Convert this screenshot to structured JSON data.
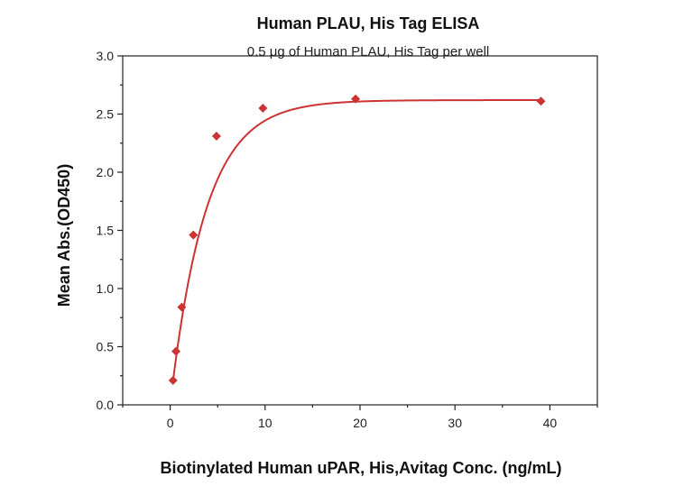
{
  "chart_data": {
    "type": "scatter",
    "title": "Human PLAU, His Tag ELISA",
    "subtitle": "0.5 μg of Human PLAU, His Tag per well",
    "xlabel": "Biotinylated Human uPAR, His,Avitag Conc. (ng/mL)",
    "ylabel": "Mean Abs.(OD450)",
    "xlim": [
      -5,
      45
    ],
    "ylim": [
      0,
      3.0
    ],
    "x_ticks": [
      0,
      10,
      20,
      30,
      40
    ],
    "y_ticks": [
      0.0,
      0.5,
      1.0,
      1.5,
      2.0,
      2.5,
      3.0
    ],
    "x_tick_labels": [
      "0",
      "10",
      "20",
      "30",
      "40"
    ],
    "y_tick_labels": [
      "0.0",
      "0.5",
      "1.0",
      "1.5",
      "2.0",
      "2.5",
      "3.0"
    ],
    "grid": false,
    "series": [
      {
        "marker": "diamond",
        "color": "#cc3333",
        "fit_curve": true,
        "points": [
          {
            "x": 0.3,
            "y": 0.21
          },
          {
            "x": 0.61,
            "y": 0.46
          },
          {
            "x": 1.22,
            "y": 0.84
          },
          {
            "x": 2.44,
            "y": 1.46
          },
          {
            "x": 4.88,
            "y": 2.31
          },
          {
            "x": 9.77,
            "y": 2.55
          },
          {
            "x": 19.53,
            "y": 2.63
          },
          {
            "x": 39.06,
            "y": 2.61
          }
        ]
      }
    ]
  }
}
